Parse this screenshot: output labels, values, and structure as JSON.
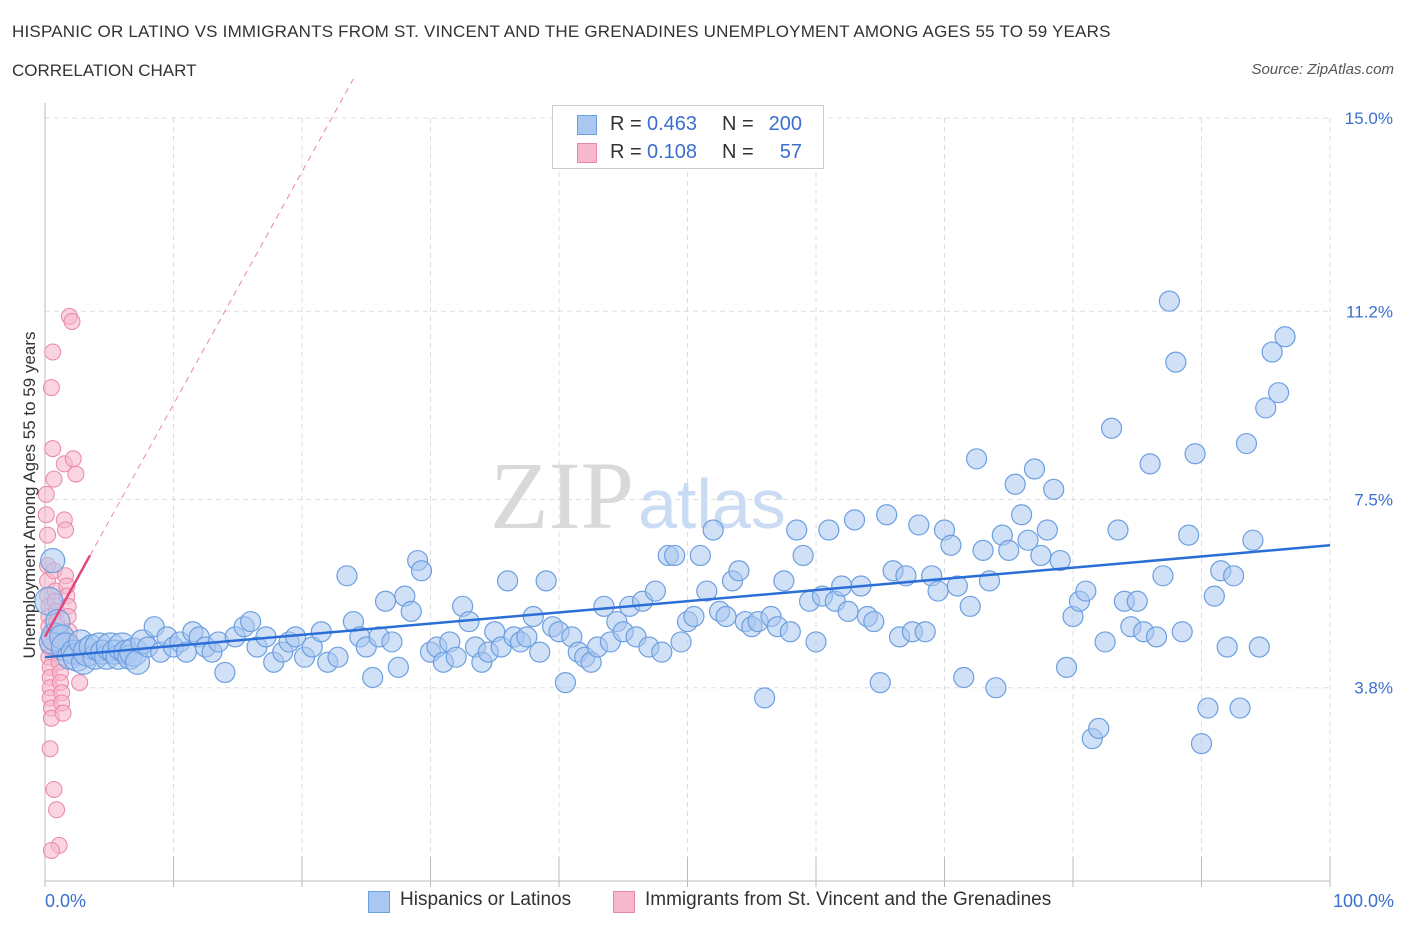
{
  "header": {
    "title": "HISPANIC OR LATINO VS IMMIGRANTS FROM ST. VINCENT AND THE GRENADINES UNEMPLOYMENT AMONG AGES 55 TO 59 YEARS",
    "subtitle": "CORRELATION CHART",
    "source": "Source: ZipAtlas.com"
  },
  "legend": {
    "rows": [
      {
        "r_label": "R =",
        "r_value": "0.463",
        "n_label": "N =",
        "n_value": "200"
      },
      {
        "r_label": "R =",
        "r_value": "0.108",
        "n_label": "N =",
        "n_value": "57"
      }
    ]
  },
  "colors": {
    "blue_fill": "#a9c7f0",
    "blue_stroke": "#6c9fe0",
    "blue_line": "#2b6fd6",
    "pink_fill": "#f6b8cb",
    "pink_stroke": "#ea86a6",
    "pink_line": "#e5457a",
    "axis_label": "#3a6fd0",
    "grid": "#dddddd"
  },
  "watermark": {
    "zip": "ZIP",
    "atlas": "atlas"
  },
  "chart_data": {
    "type": "scatter",
    "title": "HISPANIC OR LATINO VS IMMIGRANTS FROM ST. VINCENT AND THE GRENADINES UNEMPLOYMENT AMONG AGES 55 TO 59 YEARS",
    "xlabel": "",
    "ylabel": "Unemployment Among Ages 55 to 59 years",
    "xlim": [
      0,
      100
    ],
    "ylim": [
      0,
      15.0
    ],
    "x_tick_labels": [
      "0.0%",
      "100.0%"
    ],
    "y_ticks": [
      3.8,
      7.5,
      11.2,
      15.0
    ],
    "y_tick_labels": [
      "3.8%",
      "7.5%",
      "11.2%",
      "15.0%"
    ],
    "grid": true,
    "legend_position": "top-center",
    "series": [
      {
        "name": "Hispanics or Latinos",
        "r": 0.463,
        "n": 200,
        "trend": {
          "x": [
            0,
            100
          ],
          "y": [
            4.4,
            6.6
          ]
        },
        "points": [
          [
            0.3,
            5.5
          ],
          [
            0.5,
            4.7
          ],
          [
            0.6,
            6.3
          ],
          [
            0.8,
            4.8
          ],
          [
            1,
            5.1
          ],
          [
            1.3,
            4.8
          ],
          [
            1.6,
            4.6
          ],
          [
            1.9,
            4.4
          ],
          [
            2.2,
            4.5
          ],
          [
            2.5,
            4.4
          ],
          [
            2.8,
            4.7
          ],
          [
            3,
            4.3
          ],
          [
            3.3,
            4.5
          ],
          [
            3.6,
            4.6
          ],
          [
            3.9,
            4.4
          ],
          [
            4.2,
            4.6
          ],
          [
            4.5,
            4.5
          ],
          [
            4.8,
            4.4
          ],
          [
            5.1,
            4.6
          ],
          [
            5.4,
            4.5
          ],
          [
            5.7,
            4.4
          ],
          [
            6,
            4.6
          ],
          [
            6.3,
            4.5
          ],
          [
            6.6,
            4.4
          ],
          [
            6.9,
            4.5
          ],
          [
            7.2,
            4.3
          ],
          [
            7.6,
            4.7
          ],
          [
            8,
            4.6
          ],
          [
            8.5,
            5
          ],
          [
            9,
            4.5
          ],
          [
            9.5,
            4.8
          ],
          [
            10,
            4.6
          ],
          [
            10.5,
            4.7
          ],
          [
            11,
            4.5
          ],
          [
            11.5,
            4.9
          ],
          [
            12,
            4.8
          ],
          [
            12.5,
            4.6
          ],
          [
            13,
            4.5
          ],
          [
            13.5,
            4.7
          ],
          [
            14,
            4.1
          ],
          [
            14.8,
            4.8
          ],
          [
            15.5,
            5
          ],
          [
            16,
            5.1
          ],
          [
            16.5,
            4.6
          ],
          [
            17.2,
            4.8
          ],
          [
            17.8,
            4.3
          ],
          [
            18.5,
            4.5
          ],
          [
            19,
            4.7
          ],
          [
            19.5,
            4.8
          ],
          [
            20.2,
            4.4
          ],
          [
            20.8,
            4.6
          ],
          [
            21.5,
            4.9
          ],
          [
            22,
            4.3
          ],
          [
            22.8,
            4.4
          ],
          [
            23.5,
            6
          ],
          [
            24,
            5.1
          ],
          [
            24.5,
            4.8
          ],
          [
            25,
            4.6
          ],
          [
            25.5,
            4
          ],
          [
            26,
            4.8
          ],
          [
            26.5,
            5.5
          ],
          [
            27,
            4.7
          ],
          [
            27.5,
            4.2
          ],
          [
            28,
            5.6
          ],
          [
            28.5,
            5.3
          ],
          [
            29,
            6.3
          ],
          [
            29.3,
            6.1
          ],
          [
            30,
            4.5
          ],
          [
            30.5,
            4.6
          ],
          [
            31,
            4.3
          ],
          [
            31.5,
            4.7
          ],
          [
            32,
            4.4
          ],
          [
            32.5,
            5.4
          ],
          [
            33,
            5.1
          ],
          [
            33.5,
            4.6
          ],
          [
            34,
            4.3
          ],
          [
            34.5,
            4.5
          ],
          [
            35,
            4.9
          ],
          [
            35.5,
            4.6
          ],
          [
            36,
            5.9
          ],
          [
            36.5,
            4.8
          ],
          [
            37,
            4.7
          ],
          [
            37.5,
            4.8
          ],
          [
            38,
            5.2
          ],
          [
            38.5,
            4.5
          ],
          [
            39,
            5.9
          ],
          [
            39.5,
            5
          ],
          [
            40,
            4.9
          ],
          [
            40.5,
            3.9
          ],
          [
            41,
            4.8
          ],
          [
            41.5,
            4.5
          ],
          [
            42,
            4.4
          ],
          [
            42.5,
            4.3
          ],
          [
            43,
            4.6
          ],
          [
            43.5,
            5.4
          ],
          [
            44,
            4.7
          ],
          [
            44.5,
            5.1
          ],
          [
            45,
            4.9
          ],
          [
            45.5,
            5.4
          ],
          [
            46,
            4.8
          ],
          [
            46.5,
            5.5
          ],
          [
            47,
            4.6
          ],
          [
            47.5,
            5.7
          ],
          [
            48,
            4.5
          ],
          [
            48.5,
            6.4
          ],
          [
            49,
            6.4
          ],
          [
            49.5,
            4.7
          ],
          [
            50,
            5.1
          ],
          [
            50.5,
            5.2
          ],
          [
            51,
            6.4
          ],
          [
            51.5,
            5.7
          ],
          [
            52,
            6.9
          ],
          [
            52.5,
            5.3
          ],
          [
            53,
            5.2
          ],
          [
            53.5,
            5.9
          ],
          [
            54,
            6.1
          ],
          [
            54.5,
            5.1
          ],
          [
            55,
            5
          ],
          [
            55.5,
            5.1
          ],
          [
            56,
            3.6
          ],
          [
            56.5,
            5.2
          ],
          [
            57,
            5
          ],
          [
            57.5,
            5.9
          ],
          [
            58,
            4.9
          ],
          [
            58.5,
            6.9
          ],
          [
            59,
            6.4
          ],
          [
            59.5,
            5.5
          ],
          [
            60,
            4.7
          ],
          [
            60.5,
            5.6
          ],
          [
            61,
            6.9
          ],
          [
            61.5,
            5.5
          ],
          [
            62,
            5.8
          ],
          [
            62.5,
            5.3
          ],
          [
            63,
            7.1
          ],
          [
            63.5,
            5.8
          ],
          [
            64,
            5.2
          ],
          [
            64.5,
            5.1
          ],
          [
            65,
            3.9
          ],
          [
            65.5,
            7.2
          ],
          [
            66,
            6.1
          ],
          [
            66.5,
            4.8
          ],
          [
            67,
            6
          ],
          [
            67.5,
            4.9
          ],
          [
            68,
            7
          ],
          [
            68.5,
            4.9
          ],
          [
            69,
            6
          ],
          [
            69.5,
            5.7
          ],
          [
            70,
            6.9
          ],
          [
            70.5,
            6.6
          ],
          [
            71,
            5.8
          ],
          [
            71.5,
            4
          ],
          [
            72,
            5.4
          ],
          [
            72.5,
            8.3
          ],
          [
            73,
            6.5
          ],
          [
            73.5,
            5.9
          ],
          [
            74,
            3.8
          ],
          [
            74.5,
            6.8
          ],
          [
            75,
            6.5
          ],
          [
            75.5,
            7.8
          ],
          [
            76,
            7.2
          ],
          [
            76.5,
            6.7
          ],
          [
            77,
            8.1
          ],
          [
            77.5,
            6.4
          ],
          [
            78,
            6.9
          ],
          [
            78.5,
            7.7
          ],
          [
            79,
            6.3
          ],
          [
            79.5,
            4.2
          ],
          [
            80,
            5.2
          ],
          [
            80.5,
            5.5
          ],
          [
            81,
            5.7
          ],
          [
            81.5,
            2.8
          ],
          [
            82,
            3
          ],
          [
            82.5,
            4.7
          ],
          [
            83,
            8.9
          ],
          [
            83.5,
            6.9
          ],
          [
            84,
            5.5
          ],
          [
            84.5,
            5
          ],
          [
            85,
            5.5
          ],
          [
            85.5,
            4.9
          ],
          [
            86,
            8.2
          ],
          [
            86.5,
            4.8
          ],
          [
            87,
            6
          ],
          [
            87.5,
            11.4
          ],
          [
            88,
            10.2
          ],
          [
            88.5,
            4.9
          ],
          [
            89,
            6.8
          ],
          [
            89.5,
            8.4
          ],
          [
            90,
            2.7
          ],
          [
            90.5,
            3.4
          ],
          [
            91,
            5.6
          ],
          [
            91.5,
            6.1
          ],
          [
            92,
            4.6
          ],
          [
            92.5,
            6
          ],
          [
            93,
            3.4
          ],
          [
            93.5,
            8.6
          ],
          [
            94,
            6.7
          ],
          [
            94.5,
            4.6
          ],
          [
            95,
            9.3
          ],
          [
            95.5,
            10.4
          ],
          [
            96,
            9.6
          ],
          [
            96.5,
            10.7
          ]
        ]
      },
      {
        "name": "Immigrants from St. Vincent and the Grenadines",
        "r": 0.108,
        "n": 57,
        "trend": {
          "x": [
            0,
            3.5
          ],
          "y": [
            4.8,
            6.4
          ]
        },
        "points": [
          [
            0.1,
            7.6
          ],
          [
            0.1,
            7.2
          ],
          [
            0.2,
            6.8
          ],
          [
            0.2,
            6.2
          ],
          [
            0.2,
            5.9
          ],
          [
            0.2,
            5.6
          ],
          [
            0.3,
            5.4
          ],
          [
            0.3,
            5.2
          ],
          [
            0.3,
            5
          ],
          [
            0.3,
            4.8
          ],
          [
            0.3,
            4.6
          ],
          [
            0.3,
            4.4
          ],
          [
            0.4,
            4.2
          ],
          [
            0.4,
            4
          ],
          [
            0.4,
            3.8
          ],
          [
            0.4,
            3.6
          ],
          [
            0.5,
            3.4
          ],
          [
            0.5,
            3.2
          ],
          [
            0.5,
            9.7
          ],
          [
            0.6,
            10.4
          ],
          [
            0.6,
            8.5
          ],
          [
            0.7,
            7.9
          ],
          [
            0.7,
            6.1
          ],
          [
            0.8,
            5.7
          ],
          [
            0.8,
            5.5
          ],
          [
            0.9,
            5.3
          ],
          [
            0.9,
            5.1
          ],
          [
            1,
            4.9
          ],
          [
            1,
            4.7
          ],
          [
            1.1,
            4.5
          ],
          [
            1.1,
            4.3
          ],
          [
            1.2,
            4.1
          ],
          [
            1.2,
            3.9
          ],
          [
            1.3,
            3.7
          ],
          [
            1.3,
            3.5
          ],
          [
            1.4,
            3.3
          ],
          [
            1.5,
            8.2
          ],
          [
            1.5,
            7.1
          ],
          [
            1.6,
            6.9
          ],
          [
            1.6,
            6
          ],
          [
            1.7,
            5.8
          ],
          [
            1.7,
            5.6
          ],
          [
            1.8,
            5.4
          ],
          [
            1.8,
            5.2
          ],
          [
            1.9,
            11.1
          ],
          [
            1.9,
            4.9
          ],
          [
            2,
            4.7
          ],
          [
            2.1,
            11
          ],
          [
            2.2,
            8.3
          ],
          [
            2.3,
            4.5
          ],
          [
            2.4,
            8
          ],
          [
            2.5,
            4.4
          ],
          [
            2.7,
            3.9
          ],
          [
            0.4,
            2.6
          ],
          [
            0.7,
            1.8
          ],
          [
            0.9,
            1.4
          ],
          [
            1.1,
            0.7
          ],
          [
            0.5,
            0.6
          ]
        ]
      }
    ]
  },
  "axes": {
    "y_title": "Unemployment Among Ages 55 to 59 years",
    "x_left": "0.0%",
    "x_right": "100.0%"
  },
  "bottom_legend": {
    "blue": "Hispanics or Latinos",
    "pink": "Immigrants from St. Vincent and the Grenadines"
  }
}
